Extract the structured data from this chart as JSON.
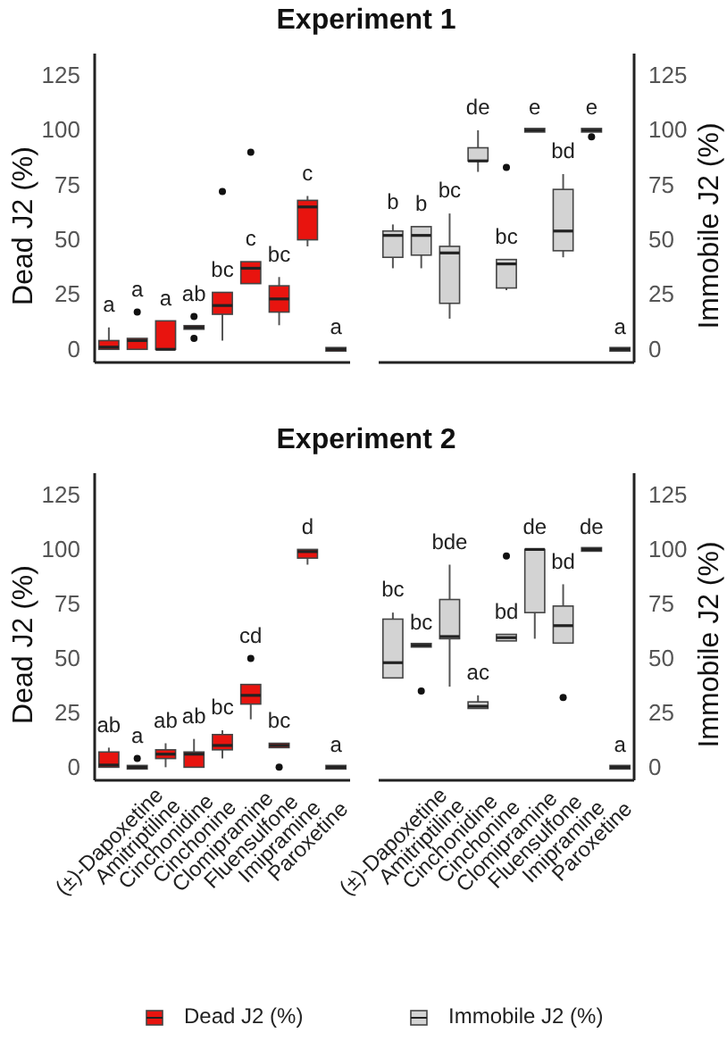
{
  "chart_data": [
    {
      "type": "box",
      "title": "Experiment 1",
      "ylabel": "Dead J2 (%)",
      "categories": [
        null,
        null,
        null,
        null,
        null,
        null,
        null,
        null,
        null
      ],
      "tick_labels": "y",
      "ylim": [
        -6,
        135
      ],
      "yticks": [
        0,
        25,
        50,
        75,
        100,
        125
      ],
      "series": [
        {
          "color": "#e8140f",
          "boxes": [
            {
              "low": 0,
              "q1": 0,
              "median": 1,
              "q3": 4,
              "high": 10
            },
            {
              "low": 0,
              "q1": 0,
              "median": 4,
              "q3": 5,
              "high": 5,
              "outliers": [
                17
              ]
            },
            {
              "low": 0,
              "q1": 0,
              "median": 0,
              "q3": 13,
              "high": 13
            },
            {
              "low": 10,
              "q1": 10,
              "median": 10,
              "q3": 10,
              "high": 10,
              "outliers": [
                15,
                5
              ]
            },
            {
              "low": 4,
              "q1": 16,
              "median": 20,
              "q3": 26,
              "high": 26,
              "outliers": [
                72
              ]
            },
            {
              "low": 30,
              "q1": 30,
              "median": 37,
              "q3": 40,
              "high": 40,
              "outliers": [
                90
              ]
            },
            {
              "low": 11,
              "q1": 17,
              "median": 23,
              "q3": 29,
              "high": 33
            },
            {
              "low": 47,
              "q1": 50,
              "median": 65,
              "q3": 68,
              "high": 70
            },
            {
              "low": 0,
              "q1": 0,
              "median": 0,
              "q3": 0,
              "high": 0
            }
          ]
        }
      ],
      "annotations": [
        "a",
        "a",
        "a",
        "ab",
        "bc",
        "c",
        "bc",
        "c",
        "a"
      ]
    },
    {
      "type": "box",
      "ylabel": "Immobile J2 (%)",
      "categories": [
        null,
        null,
        null,
        null,
        null,
        null,
        null,
        null,
        null
      ],
      "tick_labels": "y",
      "ylim": [
        -6,
        135
      ],
      "yticks": [
        0,
        25,
        50,
        75,
        100,
        125
      ],
      "series": [
        {
          "color": "#d3d3d3",
          "boxes": [
            {
              "low": 37,
              "q1": 42,
              "median": 52,
              "q3": 54,
              "high": 57
            },
            {
              "low": 37,
              "q1": 43,
              "median": 52,
              "q3": 56,
              "high": 56
            },
            {
              "low": 14,
              "q1": 21,
              "median": 44,
              "q3": 47,
              "high": 62
            },
            {
              "low": 81,
              "q1": 86,
              "median": 86,
              "q3": 92,
              "high": 100
            },
            {
              "low": 27,
              "q1": 28,
              "median": 39,
              "q3": 41,
              "high": 41,
              "outliers": [
                83
              ]
            },
            {
              "low": 100,
              "q1": 100,
              "median": 100,
              "q3": 100,
              "high": 100
            },
            {
              "low": 42,
              "q1": 45,
              "median": 54,
              "q3": 73,
              "high": 80
            },
            {
              "low": 100,
              "q1": 100,
              "median": 100,
              "q3": 100,
              "high": 100,
              "outliers": [
                97
              ]
            },
            {
              "low": 0,
              "q1": 0,
              "median": 0,
              "q3": 0,
              "high": 0
            }
          ]
        }
      ],
      "annotations": [
        "b",
        "b",
        "bc",
        "de",
        "bc",
        "e",
        "bd",
        "e",
        "a"
      ]
    },
    {
      "type": "box",
      "title": "Experiment 2",
      "ylabel": "Dead J2 (%)",
      "categories": [
        "(±)-Dapoxetine",
        "Amitriptiline",
        "Cinchonidine",
        "Cinchonine",
        "Clomipramine",
        "Fluensulfone",
        "Imipramine",
        "Paroxetine",
        null
      ],
      "ylim": [
        -6,
        135
      ],
      "yticks": [
        0,
        25,
        50,
        75,
        100,
        125
      ],
      "legend": "bottom",
      "series": [
        {
          "name": "Dead J2 (%)",
          "color": "#e8140f",
          "boxes": [
            {
              "low": 0,
              "q1": 0,
              "median": 1,
              "q3": 7,
              "high": 9
            },
            {
              "low": 0,
              "q1": 0,
              "median": 0,
              "q3": 0,
              "high": 0,
              "outliers": [
                4
              ]
            },
            {
              "low": 0,
              "q1": 4,
              "median": 6,
              "q3": 8,
              "high": 11
            },
            {
              "low": 0,
              "q1": 0,
              "median": 6,
              "q3": 7,
              "high": 13
            },
            {
              "low": 4,
              "q1": 8,
              "median": 10,
              "q3": 15,
              "high": 17
            },
            {
              "low": 22,
              "q1": 29,
              "median": 33,
              "q3": 38,
              "high": 38,
              "outliers": [
                50
              ]
            },
            {
              "low": 9,
              "q1": 9,
              "median": 10,
              "q3": 11,
              "high": 11,
              "outliers": [
                0
              ]
            },
            {
              "low": 93,
              "q1": 96,
              "median": 99,
              "q3": 100,
              "high": 100
            },
            {
              "low": 0,
              "q1": 0,
              "median": 0,
              "q3": 0,
              "high": 0
            }
          ]
        }
      ],
      "annotations": [
        "ab",
        "a",
        "ab",
        "ab",
        "bc",
        "cd",
        "bc",
        "d",
        "a"
      ]
    },
    {
      "type": "box",
      "ylabel": "Immobile J2 (%)",
      "categories": [
        "(±)-Dapoxetine",
        "Amitriptiline",
        "Cinchonidine",
        "Cinchonine",
        "Clomipramine",
        "Fluensulfone",
        "Imipramine",
        "Paroxetine",
        null
      ],
      "ylim": [
        -6,
        135
      ],
      "yticks": [
        0,
        25,
        50,
        75,
        100,
        125
      ],
      "legend": "bottom",
      "series": [
        {
          "name": "Immobile J2 (%)",
          "color": "#d3d3d3",
          "boxes": [
            {
              "low": 41,
              "q1": 41,
              "median": 48,
              "q3": 68,
              "high": 71
            },
            {
              "low": 56,
              "q1": 56,
              "median": 56,
              "q3": 56,
              "high": 56,
              "outliers": [
                35
              ]
            },
            {
              "low": 37,
              "q1": 59,
              "median": 60,
              "q3": 77,
              "high": 93
            },
            {
              "low": 27,
              "q1": 27,
              "median": 28,
              "q3": 30,
              "high": 33
            },
            {
              "low": 58,
              "q1": 58,
              "median": 59.5,
              "q3": 61,
              "high": 61,
              "outliers": [
                97
              ]
            },
            {
              "low": 59,
              "q1": 71,
              "median": 100,
              "q3": 100,
              "high": 100
            },
            {
              "low": 57,
              "q1": 57,
              "median": 65,
              "q3": 74,
              "high": 84,
              "outliers": [
                32
              ]
            },
            {
              "low": 100,
              "q1": 100,
              "median": 100,
              "q3": 100,
              "high": 100
            },
            {
              "low": 0,
              "q1": 0,
              "median": 0,
              "q3": 0,
              "high": 0
            }
          ]
        }
      ],
      "annotations": [
        "bc",
        "bc",
        "bde",
        "ac",
        "bd",
        "de",
        "bd",
        "de",
        "a"
      ]
    }
  ]
}
